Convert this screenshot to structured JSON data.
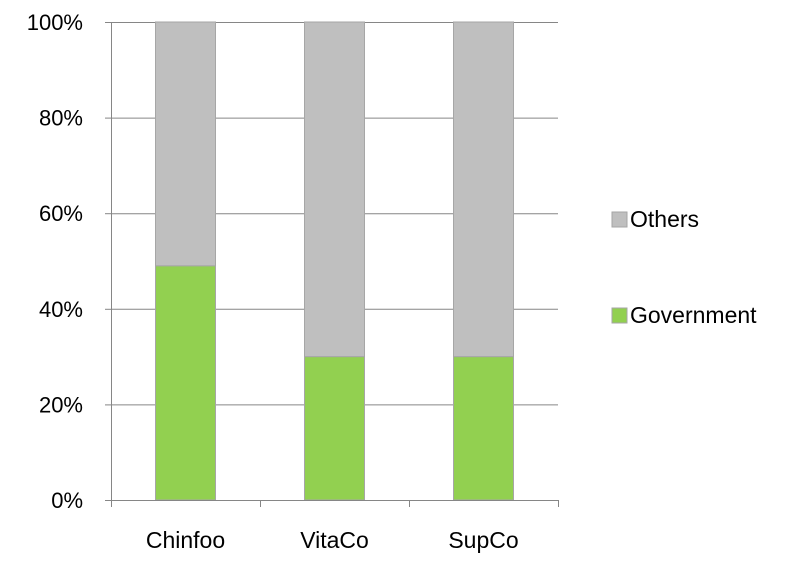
{
  "chart_data": {
    "type": "bar",
    "stacked": true,
    "categories": [
      "Chinfoo",
      "VitaCo",
      "SupCo"
    ],
    "series": [
      {
        "name": "Government",
        "values": [
          49,
          30,
          30
        ],
        "color": "#92d050"
      },
      {
        "name": "Others",
        "values": [
          51,
          70,
          70
        ],
        "color": "#bfbfbf"
      }
    ],
    "ylim": [
      0,
      100
    ],
    "yticks": [
      0,
      20,
      40,
      60,
      80,
      100
    ],
    "ytick_labels": [
      "0%",
      "20%",
      "40%",
      "60%",
      "80%",
      "100%"
    ],
    "grid": true,
    "legend": {
      "position": "right",
      "entries": [
        "Others",
        "Government"
      ]
    },
    "colors": {
      "bar_border": "#a6a6a6",
      "grid": "#868686",
      "axis": "#868686"
    }
  }
}
